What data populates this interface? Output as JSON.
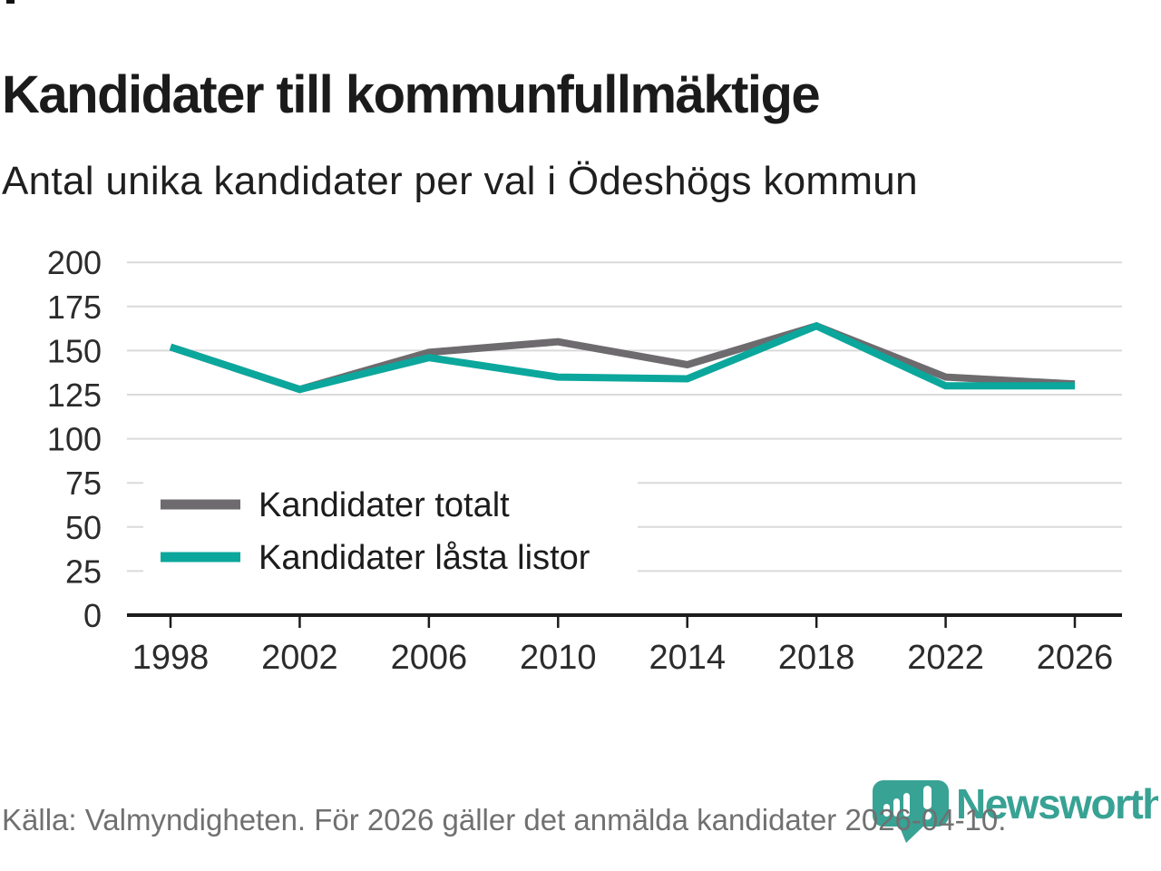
{
  "title": "Kandidater till kommunfullmäktige",
  "subtitle": "Antal unika kandidater per val i Ödeshögs kommun",
  "footer": {
    "source_text": "Källa: Valmyndigheten. För 2026 gäller det anmälda kandidater 2026-04-10."
  },
  "logo": {
    "brand": "Newsworthy"
  },
  "colors": {
    "total_line": "#6e6b6e",
    "locked_line": "#0ca79c",
    "grid": "#dadada",
    "axis": "#1c1c1c",
    "tick_text": "#2b2b2b",
    "legend_text": "#1c1c1c",
    "footer_text": "#707070",
    "logo_teal": "#38a294"
  },
  "chart_data": {
    "type": "line",
    "x": [
      1998,
      2002,
      2006,
      2010,
      2014,
      2018,
      2022,
      2026
    ],
    "series": [
      {
        "name": "Kandidater totalt",
        "color": "#6e6b6e",
        "values": [
          152,
          128,
          149,
          155,
          142,
          164,
          135,
          131
        ]
      },
      {
        "name": "Kandidater låsta listor",
        "color": "#0ca79c",
        "values": [
          152,
          128,
          146,
          135,
          134,
          164,
          130,
          130
        ]
      }
    ],
    "ylim": [
      0,
      200
    ],
    "yticks": [
      0,
      25,
      50,
      75,
      100,
      125,
      150,
      175,
      200
    ],
    "grid": "horizontal",
    "legend_position": "inside-bottom-left"
  }
}
